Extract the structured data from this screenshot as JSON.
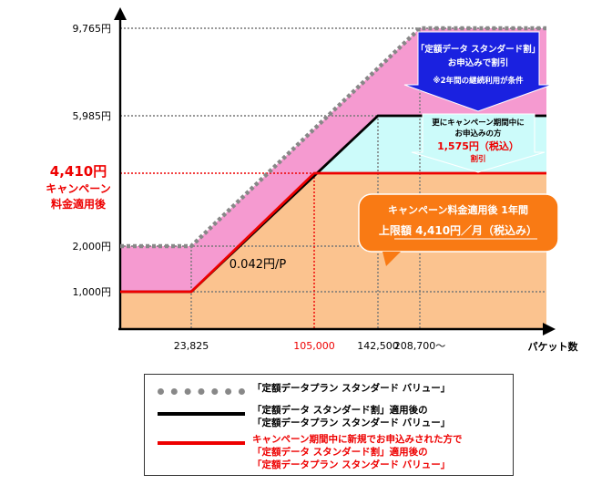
{
  "chart_data": {
    "type": "line",
    "xlabel": "パケット数",
    "x_ticks": [
      {
        "value": 23825,
        "label": "23,825",
        "color": "#000000"
      },
      {
        "value": 105000,
        "label": "105,000",
        "color": "#ee0000"
      },
      {
        "value": 142500,
        "label": "142,500",
        "color": "#000000"
      },
      {
        "value": 208700,
        "label": "208,700～",
        "color": "#000000"
      }
    ],
    "y_ticks": [
      {
        "value": 1000,
        "label": "1,000円"
      },
      {
        "value": 2000,
        "label": "2,000円"
      },
      {
        "value": 5985,
        "label": "5,985円"
      },
      {
        "value": 9765,
        "label": "9,765円"
      }
    ],
    "campaign_label": {
      "value": 4410,
      "lines": [
        "4,410円",
        "キャンペーン",
        "料金適用後"
      ]
    },
    "slope_annotation": "0.042円/P",
    "series": [
      {
        "name": "「定額データプラン スタンダード バリュー」",
        "style": "dotted",
        "color": "#888888",
        "points": [
          [
            0,
            2000
          ],
          [
            23825,
            2000
          ],
          [
            208700,
            9765
          ],
          [
            260000,
            9765
          ]
        ]
      },
      {
        "name": "「定額データ スタンダード割」適用後の「定額データプラン スタンダード バリュー」",
        "style": "solid",
        "color": "#000000",
        "points": [
          [
            0,
            1000
          ],
          [
            23825,
            1000
          ],
          [
            142500,
            5985
          ],
          [
            260000,
            5985
          ]
        ]
      },
      {
        "name": "キャンペーン期間中に新規でお申込みされた方で「定額データ スタンダード割」適用後の「定額データプラン スタンダード バリュー」",
        "style": "solid",
        "color": "#ee0000",
        "points": [
          [
            0,
            1000
          ],
          [
            23825,
            1000
          ],
          [
            105000,
            4410
          ],
          [
            260000,
            4410
          ]
        ]
      }
    ],
    "callouts": {
      "blue": [
        "「定額データ スタンダード割」",
        "お申込みで割引",
        "※2年間の継続利用が条件"
      ],
      "cyan": [
        "更にキャンペーン期間中に",
        "お申込みの方",
        "1,575円（税込）",
        "割引"
      ],
      "orange": [
        "キャンペーン料金適用後 1年間",
        "上限額 4,410円／月（税込み）"
      ]
    }
  },
  "legend": [
    {
      "text": [
        "「定額データプラン スタンダード バリュー」"
      ],
      "color": "#000000"
    },
    {
      "text": [
        "「定額データ スタンダード割」適用後の",
        "「定額データプラン スタンダード バリュー」"
      ],
      "color": "#000000"
    },
    {
      "text": [
        "キャンペーン期間中に新規でお申込みされた方で",
        "「定額データ スタンダード割」適用後の",
        "「定額データプラン スタンダード バリュー」"
      ],
      "color": "#ee0000"
    }
  ],
  "colors": {
    "pink": "#f59ad0",
    "cyan": "#ccfbfa",
    "peach": "#fbc38f",
    "blue_arrow": "#1a21e0",
    "orange_box": "#f97a14",
    "red": "#ee0000"
  }
}
